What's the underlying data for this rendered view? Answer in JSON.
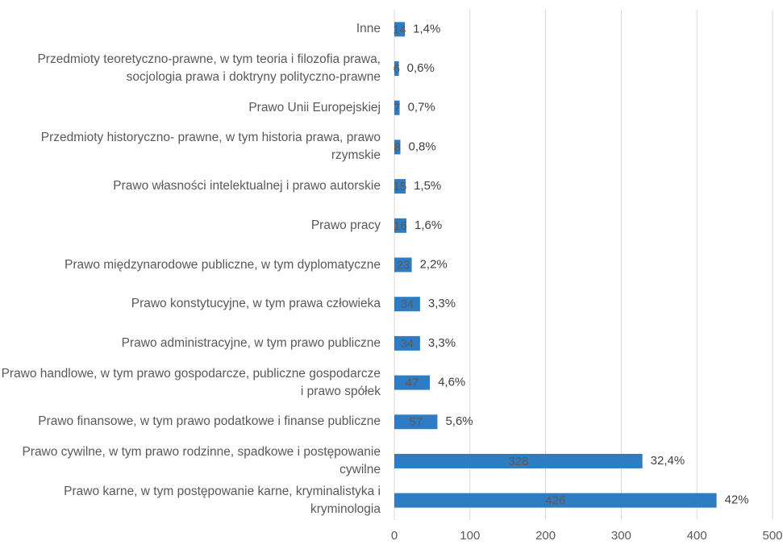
{
  "chart_data": {
    "type": "hbar",
    "categories": [
      "Inne",
      "Przedmioty teoretyczno-prawne, w tym teoria i filozofia prawa, socjologia prawa i doktryny polityczno-prawne",
      "Prawo Unii Europejskiej",
      "Przedmioty historyczno- prawne, w tym historia prawa, prawo rzymskie",
      "Prawo własności intelektualnej i prawo autorskie",
      "Prawo pracy",
      "Prawo międzynarodowe publiczne, w tym dyplomatyczne",
      "Prawo konstytucyjne, w tym prawa człowieka",
      "Prawo administracyjne, w tym prawo publiczne",
      "Prawo handlowe, w tym prawo gospodarcze, publiczne gospodarcze i prawo spółek",
      "Prawo finansowe, w tym prawo podatkowe i finanse publiczne",
      "Prawo cywilne, w tym prawo rodzinne, spadkowe i postępowanie cywilne",
      "Prawo karne, w tym postępowanie karne, kryminalistyka i kryminologia"
    ],
    "values": [
      14,
      6,
      7,
      8,
      15,
      16,
      23,
      34,
      34,
      47,
      57,
      328,
      426
    ],
    "percent_labels": [
      "1,4%",
      "0,6%",
      "0,7%",
      "0,8%",
      "1,5%",
      "1,6%",
      "2,2%",
      "3,3%",
      "3,3%",
      "4,6%",
      "5,6%",
      "32,4%",
      "42%"
    ],
    "color": "#2e7dc4",
    "xlim": [
      0,
      500
    ],
    "xticks": [
      0,
      100,
      200,
      300,
      400,
      500
    ],
    "grid": true
  }
}
